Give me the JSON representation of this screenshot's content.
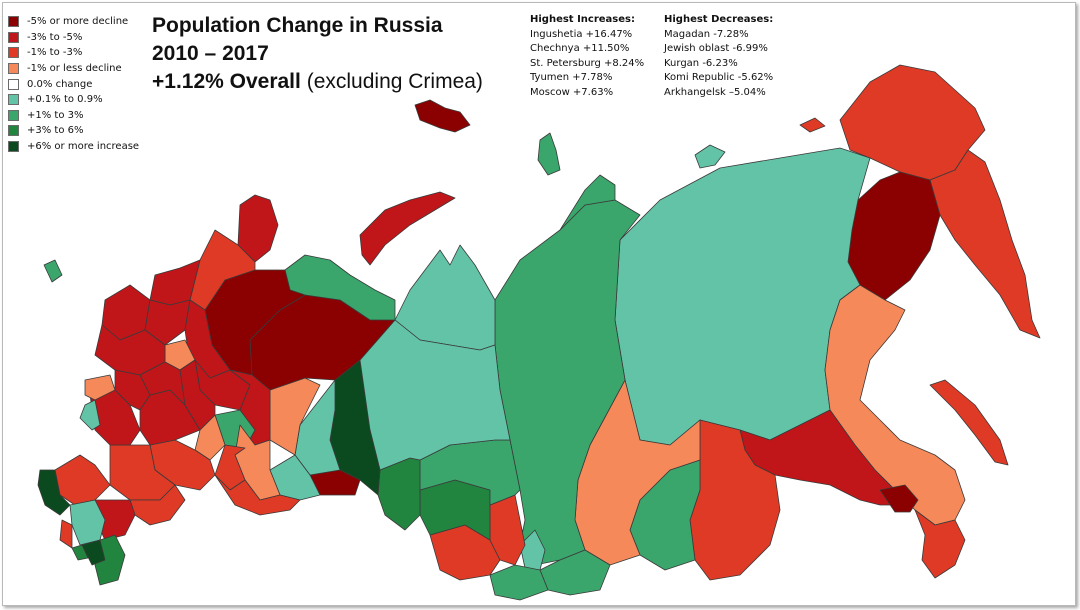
{
  "title": {
    "line1": "Population Change in Russia",
    "line2": "2010 – 2017",
    "overall": "+1.12% Overall",
    "note": "(excluding Crimea)"
  },
  "legend": [
    {
      "label": "-5% or more decline",
      "color": "#8b0000"
    },
    {
      "label": "-3% to -5%",
      "color": "#c0161a"
    },
    {
      "label": "-1% to -3%",
      "color": "#de3a26"
    },
    {
      "label": "-1% or less decline",
      "color": "#f5895a"
    },
    {
      "label": "0.0% change",
      "color": "#ffffff"
    },
    {
      "label": "+0.1% to 0.9%",
      "color": "#63c3a6"
    },
    {
      "label": "+1% to 3%",
      "color": "#3aa66c"
    },
    {
      "label": "+3% to 6%",
      "color": "#22853f"
    },
    {
      "label": "+6% or more increase",
      "color": "#0b4a1f"
    }
  ],
  "highest_increases": {
    "heading": "Highest Increases:",
    "items": [
      "Ingushetia +16.47%",
      "Chechnya +11.50%",
      "St. Petersburg +8.24%",
      "Tyumen +7.78%",
      "Moscow +7.63%"
    ]
  },
  "highest_decreases": {
    "heading": "Highest Decreases:",
    "items": [
      "Magadan -7.28%",
      "Jewish oblast -6.99%",
      "Kurgan -6.23%",
      "Komi Republic -5.62%",
      "Arkhangelsk –5.04%"
    ]
  }
}
